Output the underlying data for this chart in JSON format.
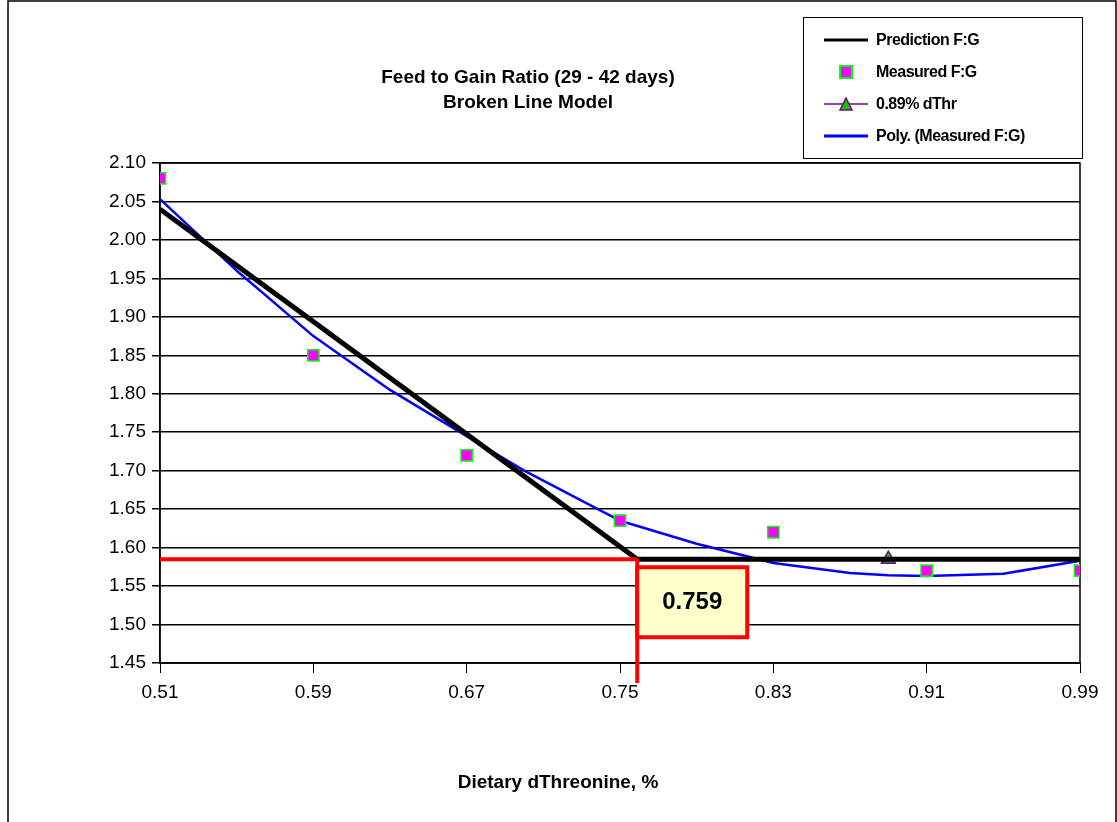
{
  "chart_data": {
    "type": "line",
    "title": "Feed to Gain Ratio (29 - 42 days)",
    "subtitle": "Broken Line Model",
    "xlabel": "Dietary dThreonine, %",
    "xlim": [
      0.51,
      0.99
    ],
    "xticks": [
      0.51,
      0.59,
      0.67,
      0.75,
      0.83,
      0.91,
      0.99
    ],
    "ylim": [
      1.45,
      2.1
    ],
    "yticks": [
      1.45,
      {
        "value": 1.5,
        "label": "1.50"
      },
      1.55,
      {
        "value": 1.6,
        "label": "1.60"
      },
      1.65,
      {
        "value": 1.7,
        "label": "1.70"
      },
      1.75,
      {
        "value": 1.8,
        "label": "1.80"
      },
      1.85,
      {
        "value": 1.9,
        "label": "1.90"
      },
      1.95,
      {
        "value": 2.0,
        "label": "2.00"
      },
      2.05,
      {
        "value": 2.1,
        "label": "2.10"
      }
    ],
    "grid": "y",
    "legend": "top right",
    "series": [
      {
        "name": "Prediction F:G",
        "type": "line",
        "color": "#000000",
        "marker": "none",
        "x": [
          0.51,
          0.759,
          0.99
        ],
        "values": [
          2.04,
          1.585,
          1.585
        ]
      },
      {
        "name": "Measured F:G",
        "type": "scatter",
        "color": "#ff00ff",
        "marker": "square",
        "x": [
          0.51,
          0.59,
          0.67,
          0.75,
          0.83,
          0.91,
          0.99
        ],
        "values": [
          2.08,
          1.85,
          1.72,
          1.635,
          1.62,
          1.57,
          1.57
        ]
      },
      {
        "name": "0.89% dThr",
        "type": "scatter",
        "color": "#00cc00",
        "marker": "triangle",
        "x": [
          0.89
        ],
        "values": [
          1.585
        ]
      },
      {
        "name": "Poly. (Measured F:G)",
        "type": "line",
        "color": "#0000ff",
        "marker": "none",
        "x": [
          0.51,
          0.55,
          0.59,
          0.63,
          0.67,
          0.7,
          0.75,
          0.79,
          0.83,
          0.87,
          0.89,
          0.91,
          0.95,
          0.99
        ],
        "values": [
          2.053,
          1.96,
          1.875,
          1.805,
          1.745,
          1.7,
          1.635,
          1.605,
          1.58,
          1.567,
          1.564,
          1.563,
          1.566,
          1.583
        ]
      }
    ],
    "ref_lines": [
      {
        "axis": "x",
        "value": 0.759,
        "label": "0.759",
        "color": "#ff0000"
      },
      {
        "axis": "y",
        "value": 1.585,
        "color": "#ff0000"
      }
    ]
  }
}
